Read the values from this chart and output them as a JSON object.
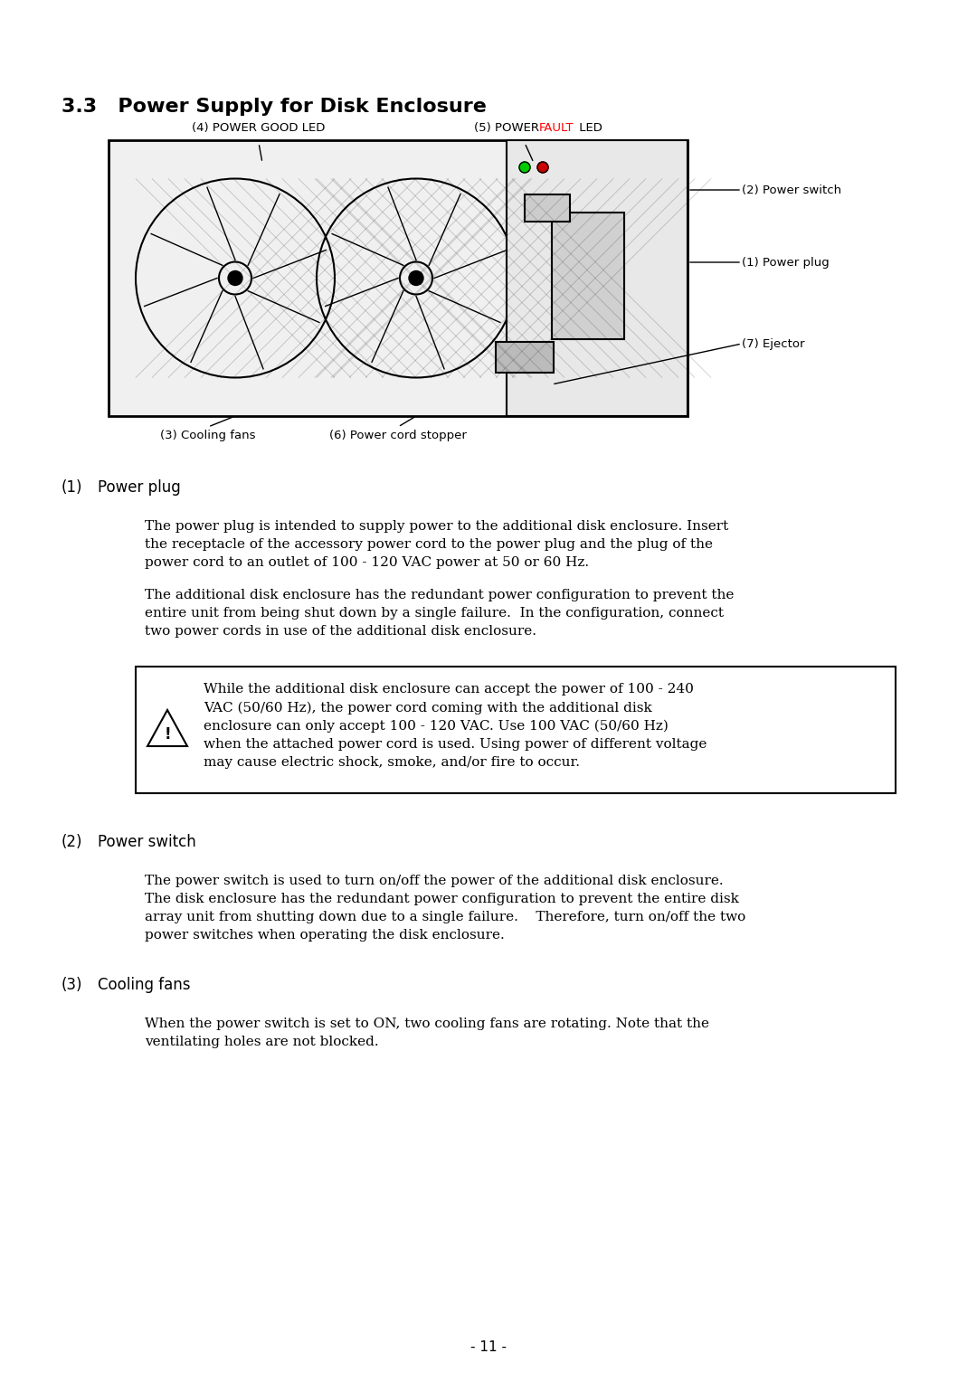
{
  "title": "3.3   Power Supply for Disk Enclosure",
  "page_number": "- 11 -",
  "bg_color": "#ffffff",
  "title_fontsize": 16,
  "sections": [
    {
      "number": "(1)",
      "heading": "Power plug",
      "body": [
        "The power plug is intended to supply power to the additional disk enclosure. Insert\nthe receptacle of the accessory power cord to the power plug and the plug of the\npower cord to an outlet of 100 - 120 VAC power at 50 or 60 Hz.",
        "The additional disk enclosure has the redundant power configuration to prevent the\nentire unit from being shut down by a single failure.  In the configuration, connect\ntwo power cords in use of the additional disk enclosure."
      ]
    },
    {
      "number": "(2)",
      "heading": "Power switch",
      "body": [
        "The power switch is used to turn on/off the power of the additional disk enclosure.\nThe disk enclosure has the redundant power configuration to prevent the entire disk\narray unit from shutting down due to a single failure.    Therefore, turn on/off the two\npower switches when operating the disk enclosure."
      ]
    },
    {
      "number": "(3)",
      "heading": "Cooling fans",
      "body": [
        "When the power switch is set to ON, two cooling fans are rotating. Note that the\nventilating holes are not blocked."
      ]
    }
  ],
  "warning_box": {
    "text": "While the additional disk enclosure can accept the power of 100 - 240\nVAC (50/60 Hz), the power cord coming with the additional disk\nenclosure can only accept 100 - 120 VAC. Use 100 VAC (50/60 Hz)\nwhen the attached power cord is used. Using power of different voltage\nmay cause electric shock, smoke, and/or fire to occur."
  }
}
